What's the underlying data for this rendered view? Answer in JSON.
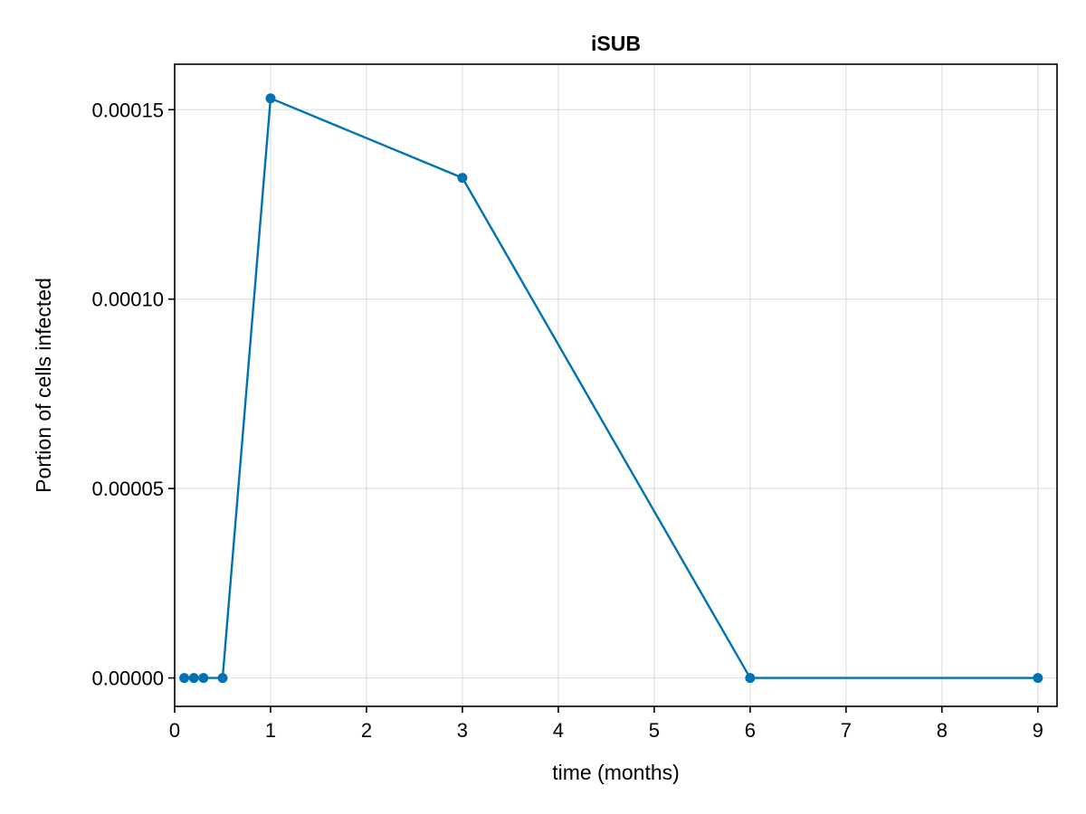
{
  "chart_data": {
    "type": "line",
    "title": "iSUB",
    "xlabel": "time (months)",
    "ylabel": "Portion of cells infected",
    "xlim": [
      0,
      9.2
    ],
    "ylim": [
      -7.5e-06,
      0.000162
    ],
    "xticks": [
      0,
      1,
      2,
      3,
      4,
      5,
      6,
      7,
      8,
      9
    ],
    "xtick_labels": [
      "0",
      "1",
      "2",
      "3",
      "4",
      "5",
      "6",
      "7",
      "8",
      "9"
    ],
    "yticks": [
      0,
      5e-05,
      0.0001,
      0.00015
    ],
    "ytick_labels": [
      "0.00000",
      "0.00005",
      "0.00010",
      "0.00015"
    ],
    "grid": true,
    "markers": true,
    "series": [
      {
        "color": "#0072b2",
        "x": [
          0.1,
          0.2,
          0.3,
          0.5,
          1,
          3,
          6,
          9
        ],
        "y": [
          0,
          0,
          0,
          0,
          0.000153,
          0.000132,
          0,
          0
        ]
      }
    ]
  }
}
